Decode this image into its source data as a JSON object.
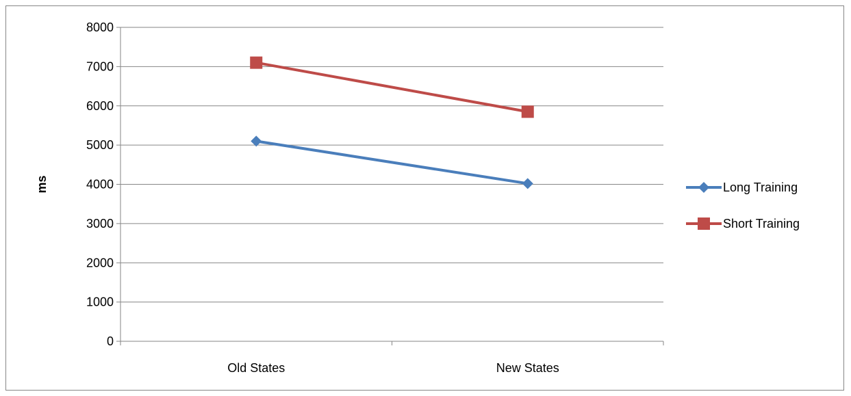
{
  "chart_data": {
    "type": "line",
    "title": "",
    "xlabel": "",
    "ylabel": "ms",
    "categories": [
      "Old States",
      "New States"
    ],
    "ylim": [
      0,
      8000
    ],
    "yticks": [
      0,
      1000,
      2000,
      3000,
      4000,
      5000,
      6000,
      7000,
      8000
    ],
    "grid": true,
    "legend_position": "right",
    "series": [
      {
        "name": "Long Training",
        "values": [
          5100,
          4020
        ],
        "color": "#4a7ebb",
        "marker": "diamond"
      },
      {
        "name": "Short Training",
        "values": [
          7100,
          5850
        ],
        "color": "#be4b48",
        "marker": "square"
      }
    ]
  }
}
